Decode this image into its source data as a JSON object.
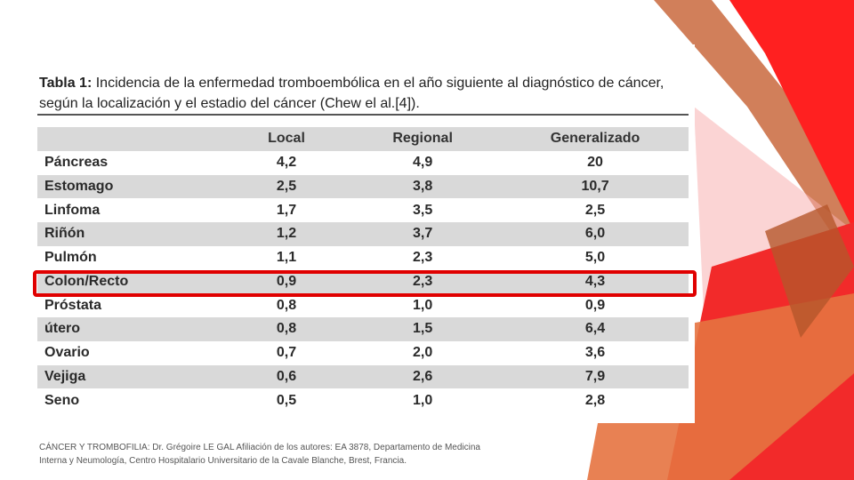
{
  "caption": {
    "label": "Tabla 1:",
    "text": "Incidencia de la enfermedad tromboembólica en el año siguiente al diagnóstico de cáncer, según la localización y el estadio del cáncer (Chew el al.[4])."
  },
  "table": {
    "headers": [
      "",
      "Local",
      "Regional",
      "Generalizado"
    ],
    "rows": [
      [
        "Páncreas",
        "4,2",
        "4,9",
        "20"
      ],
      [
        "Estomago",
        "2,5",
        "3,8",
        "10,7"
      ],
      [
        "Linfoma",
        "1,7",
        "3,5",
        "2,5"
      ],
      [
        "Riñón",
        "1,2",
        "3,7",
        "6,0"
      ],
      [
        "Pulmón",
        "1,1",
        "2,3",
        "5,0"
      ],
      [
        "Colon/Recto",
        "0,9",
        "2,3",
        "4,3"
      ],
      [
        "Próstata",
        "0,8",
        "1,0",
        "0,9"
      ],
      [
        "útero",
        "0,8",
        "1,5",
        "6,4"
      ],
      [
        "Ovario",
        "0,7",
        "2,0",
        "3,6"
      ],
      [
        "Vejiga",
        "0,6",
        "2,6",
        "7,9"
      ],
      [
        "Seno",
        "0,5",
        "1,0",
        "2,8"
      ]
    ]
  },
  "highlighted_row": "Colon/Recto",
  "source": "CÁNCER Y TROMBOFILIA: Dr. Grégoire LE GAL Afiliación de los autores: EA 3878, Departamento de Medicina Interna y Neumología, Centro Hospitalario Universitario de la Cavale Blanche, Brest, Francia.",
  "colors": {
    "accent_red": "#e00000",
    "row_shade": "#d9d9d9",
    "deco_orange": "#e0703a",
    "deco_red": "#ff2a2a"
  }
}
